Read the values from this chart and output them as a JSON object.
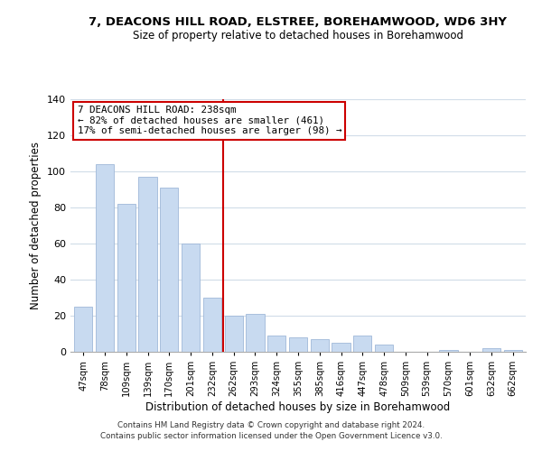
{
  "title": "7, DEACONS HILL ROAD, ELSTREE, BOREHAMWOOD, WD6 3HY",
  "subtitle": "Size of property relative to detached houses in Borehamwood",
  "xlabel": "Distribution of detached houses by size in Borehamwood",
  "ylabel": "Number of detached properties",
  "categories": [
    "47sqm",
    "78sqm",
    "109sqm",
    "139sqm",
    "170sqm",
    "201sqm",
    "232sqm",
    "262sqm",
    "293sqm",
    "324sqm",
    "355sqm",
    "385sqm",
    "416sqm",
    "447sqm",
    "478sqm",
    "509sqm",
    "539sqm",
    "570sqm",
    "601sqm",
    "632sqm",
    "662sqm"
  ],
  "values": [
    25,
    104,
    82,
    97,
    91,
    60,
    30,
    20,
    21,
    9,
    8,
    7,
    5,
    9,
    4,
    0,
    0,
    1,
    0,
    2,
    1
  ],
  "bar_color": "#c8daf0",
  "bar_edge_color": "#a0b8d8",
  "highlight_index": 6,
  "highlight_color": "#cc0000",
  "ylim": [
    0,
    140
  ],
  "yticks": [
    0,
    20,
    40,
    60,
    80,
    100,
    120,
    140
  ],
  "annotation_title": "7 DEACONS HILL ROAD: 238sqm",
  "annotation_line1": "← 82% of detached houses are smaller (461)",
  "annotation_line2": "17% of semi-detached houses are larger (98) →",
  "annotation_box_color": "#ffffff",
  "annotation_box_edge": "#cc0000",
  "footer_line1": "Contains HM Land Registry data © Crown copyright and database right 2024.",
  "footer_line2": "Contains public sector information licensed under the Open Government Licence v3.0.",
  "bg_color": "#ffffff",
  "grid_color": "#d0dce8"
}
